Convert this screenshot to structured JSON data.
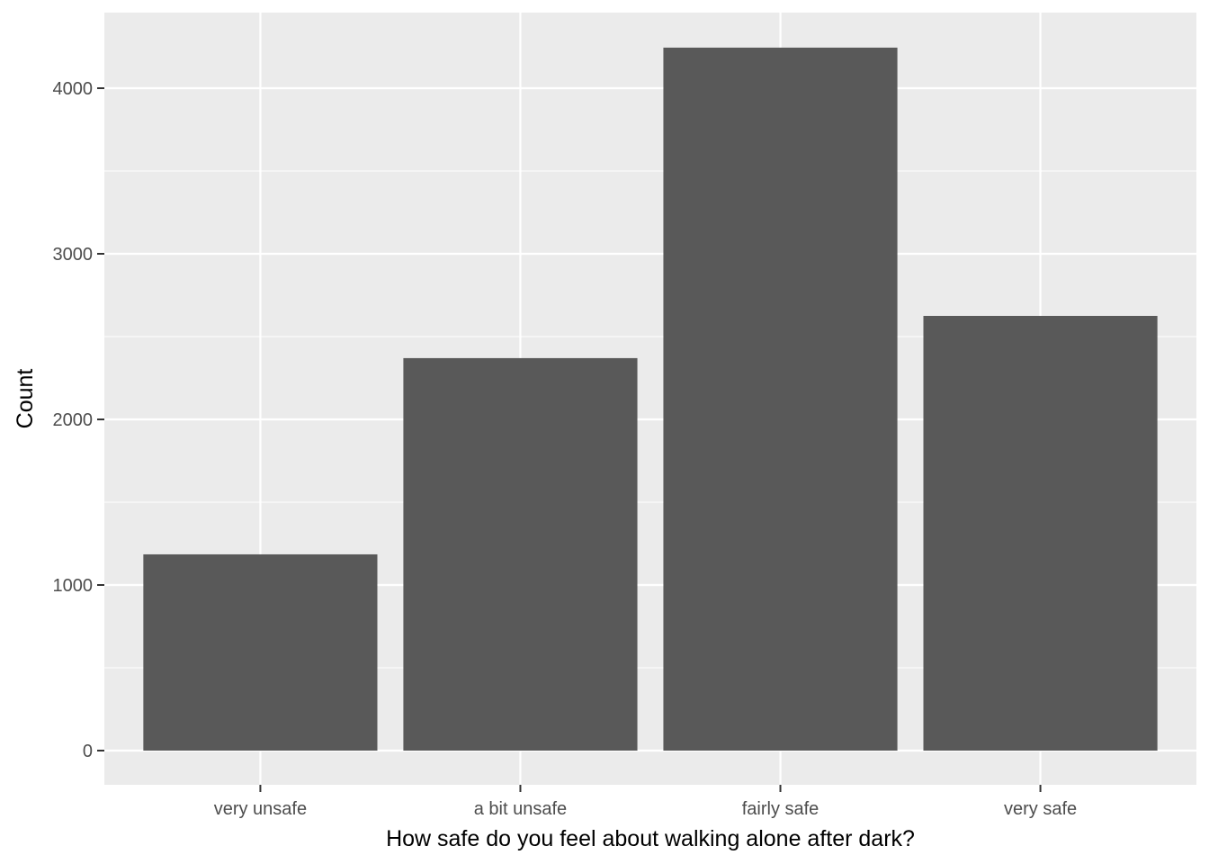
{
  "chart_data": {
    "type": "bar",
    "categories": [
      "very unsafe",
      "a bit unsafe",
      "fairly safe",
      "very safe"
    ],
    "values": [
      1185,
      2370,
      4245,
      2625
    ],
    "xlabel": "How safe do you feel about walking alone after dark?",
    "ylabel": "Count",
    "ylim": [
      0,
      4400
    ],
    "yticks": [
      0,
      1000,
      2000,
      3000,
      4000
    ],
    "grid": true,
    "legend": "none",
    "colors": {
      "panel": "#ebebeb",
      "grid_major": "#ffffff",
      "bar": "#595959",
      "tick": "#333333"
    }
  }
}
